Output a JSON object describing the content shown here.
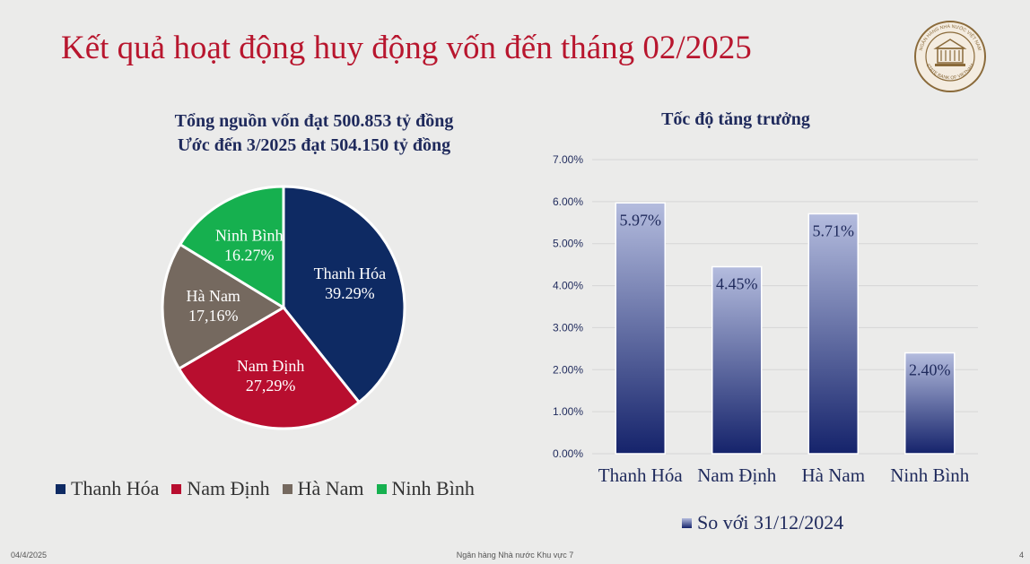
{
  "slide": {
    "title": "Kết quả hoạt động huy động vốn đến tháng 02/2025",
    "footer_date": "04/4/2025",
    "footer_center": "Ngân hàng Nhà nước Khu vực 7",
    "page_number": "4"
  },
  "logo": {
    "icon": "state-bank-of-vietnam-seal",
    "text_top": "NGÂN HÀNG NHÀ NƯỚC VIỆT NAM",
    "text_bottom": "STATE BANK OF VIETNAM"
  },
  "chart_data": [
    {
      "type": "pie",
      "title": "Tổng nguồn vốn đạt 500.853 tỷ đồng",
      "subtitle": "Ước đến 3/2025 đạt 504.150 tỷ đồng",
      "slices": [
        {
          "label": "Thanh Hóa",
          "value": 39.29,
          "value_label": "39.29%",
          "color": "#0e2a63"
        },
        {
          "label": "Nam Định",
          "value": 27.29,
          "value_label": "27,29%",
          "color": "#b80e2f"
        },
        {
          "label": "Hà Nam",
          "value": 17.16,
          "value_label": "17,16%",
          "color": "#75695f"
        },
        {
          "label": "Ninh Bình",
          "value": 16.27,
          "value_label": "16.27%",
          "color": "#16b04f"
        }
      ],
      "legend": [
        "Thanh Hóa",
        "Nam Định",
        "Hà Nam",
        "Ninh Bình"
      ],
      "legend_position": "bottom"
    },
    {
      "type": "bar",
      "title": "Tốc độ tăng trưởng",
      "categories": [
        "Thanh Hóa",
        "Nam Định",
        "Hà Nam",
        "Ninh Bình"
      ],
      "series": [
        {
          "name": "So với 31/12/2024",
          "values": [
            5.97,
            4.45,
            5.71,
            2.4
          ],
          "labels": [
            "5.97%",
            "4.45%",
            "5.71%",
            "2.40%"
          ]
        }
      ],
      "ylim": [
        0,
        7
      ],
      "yticks": [
        "0.00%",
        "1.00%",
        "2.00%",
        "3.00%",
        "4.00%",
        "5.00%",
        "6.00%",
        "7.00%"
      ],
      "grid": true,
      "legend_position": "bottom",
      "colors": {
        "bar_bottom": "#15236b",
        "bar_top": "#b4bcde"
      }
    }
  ]
}
